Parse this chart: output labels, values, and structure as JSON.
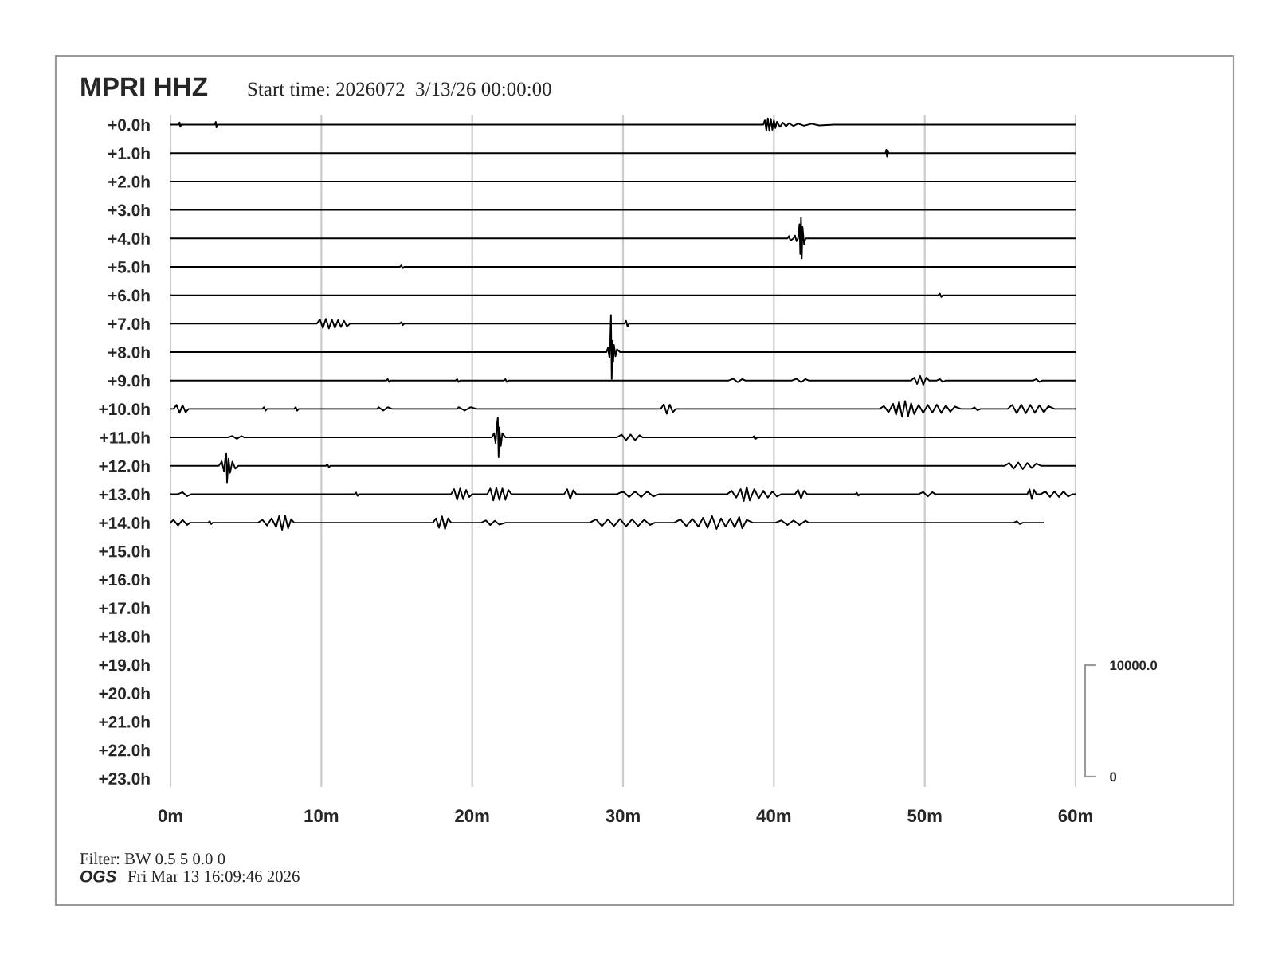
{
  "chart_data": {
    "type": "line",
    "title": "MPRI HHZ",
    "subtitle": "Start time: 2026072  3/13/26 00:00:00",
    "annotations": [
      "Filter: BW 0.5 5 0.0 0",
      "OGS",
      "Fri Mar 13 16:09:46 2026"
    ],
    "xlim": [
      0,
      60
    ],
    "xticks": [
      {
        "value": 0,
        "label": "0m"
      },
      {
        "value": 10,
        "label": "10m"
      },
      {
        "value": 20,
        "label": "20m"
      },
      {
        "value": 30,
        "label": "30m"
      },
      {
        "value": 40,
        "label": "40m"
      },
      {
        "value": 50,
        "label": "50m"
      },
      {
        "value": 60,
        "label": "60m"
      }
    ],
    "ylim": [
      23.3,
      -0.35
    ],
    "yticks": [
      {
        "value": 0,
        "label": "+0.0h"
      },
      {
        "value": 1,
        "label": "+1.0h"
      },
      {
        "value": 2,
        "label": "+2.0h"
      },
      {
        "value": 3,
        "label": "+3.0h"
      },
      {
        "value": 4,
        "label": "+4.0h"
      },
      {
        "value": 5,
        "label": "+5.0h"
      },
      {
        "value": 6,
        "label": "+6.0h"
      },
      {
        "value": 7,
        "label": "+7.0h"
      },
      {
        "value": 8,
        "label": "+8.0h"
      },
      {
        "value": 9,
        "label": "+9.0h"
      },
      {
        "value": 10,
        "label": "+10.0h"
      },
      {
        "value": 11,
        "label": "+11.0h"
      },
      {
        "value": 12,
        "label": "+12.0h"
      },
      {
        "value": 13,
        "label": "+13.0h"
      },
      {
        "value": 14,
        "label": "+14.0h"
      },
      {
        "value": 15,
        "label": "+15.0h"
      },
      {
        "value": 16,
        "label": "+16.0h"
      },
      {
        "value": 17,
        "label": "+17.0h"
      },
      {
        "value": 18,
        "label": "+18.0h"
      },
      {
        "value": 19,
        "label": "+19.0h"
      },
      {
        "value": 20,
        "label": "+20.0h"
      },
      {
        "value": 21,
        "label": "+21.0h"
      },
      {
        "value": 22,
        "label": "+22.0h"
      },
      {
        "value": 23,
        "label": "+23.0h"
      }
    ],
    "y2lim": [
      -930,
      59360
    ],
    "y2ticks": [
      0,
      {
        "value": 10000,
        "label": "10000.0"
      }
    ],
    "grid": "x",
    "line_style": "solid",
    "series": [
      {
        "color": "#000000",
        "x": [
          0,
          0.55,
          0.6,
          0.65,
          0.7,
          2.95,
          3.0,
          3.05,
          3.1,
          39.3,
          39.4,
          39.5,
          39.6,
          39.7,
          39.8,
          39.9,
          40.0,
          40.1,
          40.2,
          40.4,
          40.6,
          40.8,
          41.0,
          41.3,
          41.6,
          42.0,
          42.5,
          43.0,
          44.0,
          60
        ],
        "values": [
          0,
          0,
          -0.08,
          0.08,
          0,
          0,
          -0.1,
          0.1,
          0,
          0,
          -0.15,
          0.2,
          -0.22,
          0.22,
          -0.2,
          0.18,
          -0.15,
          0.12,
          -0.1,
          0.08,
          -0.07,
          0.06,
          -0.05,
          0.05,
          -0.04,
          0.04,
          -0.03,
          0.03,
          0,
          0
        ]
      },
      {
        "color": "#000000",
        "x": [
          0,
          47.4,
          47.45,
          47.5,
          47.55,
          47.6,
          60
        ],
        "values": [
          1,
          1,
          0.88,
          1.12,
          0.9,
          1,
          1
        ]
      },
      {
        "color": "#000000",
        "x": [
          0,
          60
        ],
        "values": [
          2,
          2
        ]
      },
      {
        "color": "#000000",
        "x": [
          0,
          60
        ],
        "values": [
          3,
          3
        ]
      },
      {
        "color": "#000000",
        "x": [
          0,
          40.9,
          41.0,
          41.1,
          41.3,
          41.4,
          41.5,
          41.6,
          41.7,
          41.75,
          41.8,
          41.85,
          41.9,
          42.0,
          42.1,
          60
        ],
        "values": [
          4,
          4,
          3.92,
          4.08,
          4,
          3.9,
          4.1,
          4,
          3.5,
          4.55,
          3.27,
          4.7,
          3.6,
          4.2,
          4,
          4
        ]
      },
      {
        "color": "#000000",
        "x": [
          0,
          15.2,
          15.3,
          15.4,
          15.5,
          60
        ],
        "values": [
          5,
          5,
          4.95,
          5.05,
          5,
          5
        ]
      },
      {
        "color": "#000000",
        "x": [
          0,
          50.9,
          51.0,
          51.1,
          51.2,
          60
        ],
        "values": [
          6,
          6,
          5.94,
          6.06,
          6,
          6
        ]
      },
      {
        "color": "#000000",
        "x": [
          0,
          9.7,
          9.9,
          10.1,
          10.3,
          10.5,
          10.7,
          10.9,
          11.1,
          11.3,
          11.5,
          11.7,
          11.9,
          15.2,
          15.3,
          15.4,
          15.5,
          30.1,
          30.2,
          30.3,
          30.4,
          60
        ],
        "values": [
          7,
          7,
          6.85,
          7.15,
          6.83,
          7.17,
          6.86,
          7.14,
          6.88,
          7.12,
          6.9,
          7.1,
          7,
          7,
          6.95,
          7.05,
          7,
          7,
          6.9,
          7.1,
          7,
          7
        ]
      },
      {
        "color": "#000000",
        "x": [
          0,
          28.9,
          29.0,
          29.1,
          29.15,
          29.2,
          29.25,
          29.3,
          29.35,
          29.4,
          29.5,
          29.6,
          29.8,
          60
        ],
        "values": [
          8,
          8,
          7.85,
          8.2,
          7.65,
          6.7,
          8.95,
          7.6,
          8.35,
          7.75,
          8.15,
          7.9,
          8,
          8
        ]
      },
      {
        "color": "#000000",
        "x": [
          0,
          14.3,
          14.4,
          14.5,
          14.6,
          18.9,
          19.0,
          19.1,
          19.2,
          22.1,
          22.2,
          22.3,
          22.4,
          37.0,
          37.3,
          37.6,
          37.9,
          38.1,
          41.2,
          41.5,
          41.8,
          42.1,
          42.3,
          49.1,
          49.3,
          49.5,
          49.7,
          49.9,
          50.1,
          50.3,
          50.8,
          51.0,
          51.2,
          51.4,
          57.2,
          57.4,
          57.6,
          57.8,
          60
        ],
        "values": [
          9,
          9,
          8.95,
          9.05,
          9,
          9,
          8.95,
          9.05,
          9,
          9,
          8.95,
          9.05,
          9,
          9,
          8.94,
          9.06,
          8.95,
          9,
          9,
          8.94,
          9.06,
          8.95,
          9,
          9,
          8.9,
          9.12,
          8.84,
          9.15,
          8.9,
          9,
          9,
          8.95,
          9.05,
          9,
          9,
          8.95,
          9.05,
          9,
          9
        ]
      },
      {
        "color": "#000000",
        "x": [
          0,
          0.2,
          0.4,
          0.6,
          0.8,
          1.0,
          1.2,
          6.1,
          6.2,
          6.3,
          6.4,
          8.2,
          8.3,
          8.4,
          8.5,
          13.7,
          13.8,
          14.1,
          14.4,
          14.7,
          19.0,
          19.1,
          19.5,
          19.9,
          20.3,
          32.5,
          32.7,
          32.9,
          33.1,
          33.3,
          33.5,
          47.0,
          47.3,
          47.6,
          47.9,
          48.1,
          48.3,
          48.5,
          48.7,
          48.9,
          49.1,
          49.3,
          49.6,
          49.9,
          50.2,
          50.5,
          50.8,
          51.1,
          51.4,
          51.7,
          52.0,
          52.4,
          53.1,
          53.3,
          53.5,
          53.7,
          55.5,
          55.8,
          56.1,
          56.4,
          56.7,
          57.0,
          57.3,
          57.6,
          57.9,
          58.2,
          58.6,
          60
        ],
        "values": [
          10,
          10,
          9.86,
          10.14,
          9.87,
          10.12,
          10,
          10,
          9.94,
          10.06,
          10,
          10,
          9.94,
          10.06,
          10,
          10,
          9.94,
          10.06,
          9.94,
          10,
          10,
          9.94,
          10.06,
          9.94,
          10,
          10,
          9.84,
          10.17,
          9.85,
          10.12,
          10,
          10,
          9.9,
          10.12,
          9.82,
          10.2,
          9.75,
          10.28,
          9.72,
          10.25,
          9.8,
          10.18,
          9.86,
          10.14,
          9.86,
          10.13,
          9.85,
          10.14,
          9.88,
          10.1,
          9.92,
          10,
          10,
          9.95,
          10.05,
          10,
          10,
          9.86,
          10.15,
          9.85,
          10.15,
          9.86,
          10.14,
          9.87,
          10.12,
          9.9,
          10,
          10
        ]
      },
      {
        "color": "#000000",
        "x": [
          0,
          3.8,
          4.1,
          4.4,
          4.7,
          4.9,
          21.3,
          21.45,
          21.55,
          21.65,
          21.7,
          21.75,
          21.8,
          21.9,
          22.0,
          22.2,
          29.6,
          29.9,
          30.2,
          30.5,
          30.8,
          31.1,
          31.3,
          38.6,
          38.7,
          38.8,
          38.9,
          60
        ],
        "values": [
          11,
          11,
          10.95,
          11.05,
          10.95,
          11,
          11,
          10.85,
          11.2,
          10.5,
          10.3,
          11.7,
          10.65,
          11.3,
          10.85,
          11,
          11,
          10.9,
          11.1,
          10.9,
          11.1,
          10.92,
          11,
          11,
          10.95,
          11.05,
          11,
          11
        ]
      },
      {
        "color": "#000000",
        "x": [
          0,
          3.2,
          3.4,
          3.55,
          3.65,
          3.7,
          3.75,
          3.85,
          3.95,
          4.1,
          4.3,
          4.5,
          10.3,
          10.4,
          10.5,
          10.6,
          55.3,
          55.6,
          55.9,
          56.2,
          56.5,
          56.8,
          57.1,
          57.4,
          57.7,
          60
        ],
        "values": [
          12,
          12,
          11.85,
          12.2,
          11.65,
          11.58,
          12.58,
          11.75,
          12.25,
          11.85,
          12.1,
          12,
          12,
          11.95,
          12.05,
          12,
          12,
          11.9,
          12.1,
          11.88,
          12.12,
          11.9,
          12.08,
          11.92,
          12,
          12
        ]
      },
      {
        "color": "#000000",
        "x": [
          0,
          0.5,
          0.8,
          1.1,
          1.4,
          12.2,
          12.3,
          12.4,
          12.5,
          18.6,
          18.8,
          19.0,
          19.2,
          19.4,
          19.6,
          19.8,
          20.0,
          21.0,
          21.2,
          21.4,
          21.6,
          21.8,
          22.0,
          22.2,
          22.4,
          22.6,
          26.1,
          26.3,
          26.5,
          26.7,
          26.9,
          29.6,
          30.0,
          30.4,
          30.8,
          31.2,
          31.6,
          32.0,
          32.4,
          36.9,
          37.2,
          37.5,
          37.8,
          38.0,
          38.2,
          38.4,
          38.7,
          39.0,
          39.3,
          39.6,
          39.9,
          40.2,
          40.5,
          41.4,
          41.6,
          41.8,
          42.0,
          42.2,
          45.4,
          45.5,
          45.6,
          45.7,
          49.6,
          49.9,
          50.2,
          50.5,
          50.7,
          56.8,
          56.95,
          57.1,
          57.25,
          57.4,
          57.7,
          58.0,
          58.3,
          58.6,
          58.9,
          59.2,
          59.5,
          59.8,
          60
        ],
        "values": [
          13,
          13,
          12.93,
          13.07,
          13,
          13,
          12.94,
          13.06,
          13,
          13,
          12.82,
          13.2,
          12.8,
          13.18,
          12.85,
          13.1,
          13,
          13,
          12.8,
          13.22,
          12.78,
          13.2,
          12.8,
          13.2,
          12.85,
          13,
          13,
          12.83,
          13.17,
          12.86,
          13,
          13,
          12.9,
          13.1,
          12.9,
          13.1,
          12.9,
          13.08,
          13,
          13,
          12.88,
          13.12,
          12.82,
          13.24,
          12.75,
          13.22,
          12.82,
          13.15,
          12.88,
          13.12,
          12.9,
          13.08,
          13,
          13,
          12.85,
          13.15,
          12.88,
          13,
          13,
          12.95,
          13.05,
          13,
          13,
          12.92,
          13.08,
          12.93,
          13,
          13,
          12.83,
          13.17,
          12.85,
          13,
          13,
          12.9,
          13.1,
          12.9,
          13.1,
          12.9,
          13.08,
          13,
          13
        ]
      },
      {
        "color": "#000000",
        "x": [
          0,
          0.2,
          0.5,
          0.8,
          1.1,
          1.3,
          2.5,
          2.6,
          2.7,
          2.8,
          5.8,
          6.1,
          6.4,
          6.7,
          7.0,
          7.2,
          7.4,
          7.6,
          7.8,
          8.0,
          8.2,
          17.4,
          17.6,
          17.8,
          18.0,
          18.2,
          18.4,
          18.6,
          20.6,
          20.9,
          21.2,
          21.5,
          21.8,
          22.2,
          27.8,
          28.2,
          28.6,
          29.0,
          29.4,
          29.8,
          30.2,
          30.6,
          31.0,
          31.4,
          31.8,
          32.1,
          33.4,
          33.8,
          34.2,
          34.6,
          35.0,
          35.3,
          35.6,
          35.9,
          36.2,
          36.5,
          36.8,
          37.1,
          37.4,
          37.7,
          37.9,
          38.2,
          38.6,
          40.1,
          40.5,
          40.9,
          41.3,
          41.7,
          42.1,
          42.3,
          55.9,
          56.1,
          56.3,
          56.5,
          57.9
        ],
        "values": [
          14,
          13.9,
          14.1,
          13.9,
          14.08,
          14,
          14,
          13.95,
          14.05,
          14,
          14,
          13.9,
          14.1,
          13.85,
          14.15,
          13.77,
          14.25,
          13.76,
          14.2,
          13.88,
          14,
          14,
          13.85,
          14.18,
          13.78,
          14.22,
          13.85,
          14,
          14,
          13.92,
          14.08,
          13.93,
          14.07,
          14,
          14,
          13.88,
          14.12,
          13.88,
          14.12,
          13.87,
          14.13,
          13.88,
          14.12,
          13.9,
          14.08,
          14,
          14,
          13.88,
          14.12,
          13.87,
          14.14,
          13.83,
          14.18,
          13.77,
          14.22,
          13.85,
          14.14,
          13.86,
          14.16,
          13.8,
          14.2,
          13.9,
          14,
          14,
          13.92,
          14.08,
          13.92,
          14.08,
          13.93,
          14,
          14,
          13.95,
          14.05,
          14,
          14
        ]
      }
    ]
  }
}
